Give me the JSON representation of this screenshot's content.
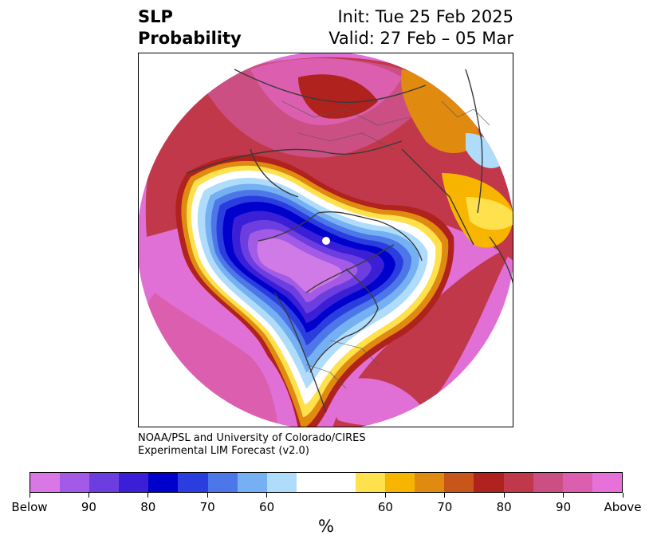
{
  "title": {
    "left_line1": "SLP",
    "left_line2": "Probability",
    "right_line1": "Init: Tue 25 Feb 2025",
    "right_line2": "Valid: 27 Feb – 05 Mar"
  },
  "credit": {
    "line1": "NOAA/PSL and University of Colorado/CIRES",
    "line2": "Experimental LIM Forecast (v2.0)"
  },
  "colorbar": {
    "units": "%",
    "colors": [
      "#d977e6",
      "#a35ae6",
      "#6c3ee0",
      "#3a1fd6",
      "#0000cc",
      "#2a3ee0",
      "#4d77e8",
      "#74b0f2",
      "#b0dcfb",
      "#ffffff",
      "#ffffff",
      "#ffe04d",
      "#f7b500",
      "#e08a10",
      "#c8561a",
      "#b0221e",
      "#c0384a",
      "#cc4f83",
      "#dc5faf",
      "#e672d9"
    ],
    "labels": [
      "Below",
      "90",
      "80",
      "70",
      "60",
      "60",
      "70",
      "80",
      "90",
      "Above"
    ]
  },
  "map": {
    "description_colors": {
      "pole_cap": "#cf7ae6",
      "deep_blue": "#0000cc",
      "ring_red": "#c0384a",
      "ocean_magenta": "#e070d6"
    }
  }
}
